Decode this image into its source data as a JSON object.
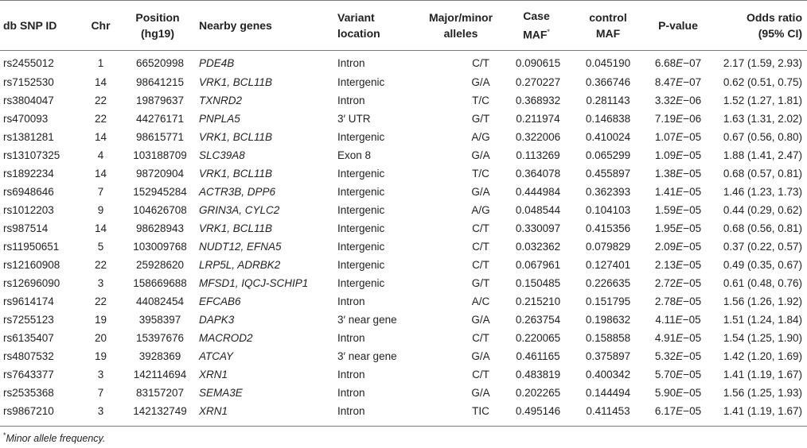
{
  "columns": [
    {
      "key": "snp",
      "label_line1": "db SNP ID",
      "label_line2": ""
    },
    {
      "key": "chr",
      "label_line1": "Chr",
      "label_line2": ""
    },
    {
      "key": "position",
      "label_line1": "Position",
      "label_line2": "(hg19)"
    },
    {
      "key": "genes",
      "label_line1": "Nearby genes",
      "label_line2": ""
    },
    {
      "key": "location",
      "label_line1": "Variant",
      "label_line2": "location"
    },
    {
      "key": "alleles",
      "label_line1": "Major/minor",
      "label_line2": "alleles"
    },
    {
      "key": "case_maf",
      "label_line1": "Case",
      "label_line2": "MAF",
      "label_sup": "*"
    },
    {
      "key": "control_maf",
      "label_line1": "control",
      "label_line2": "MAF"
    },
    {
      "key": "pvalue",
      "label_line1": "P-value",
      "label_line2": ""
    },
    {
      "key": "or",
      "label_line1": "Odds ratio",
      "label_line2": "(95% CI)"
    }
  ],
  "rows": [
    {
      "snp": "rs2455012",
      "chr": "1",
      "position": "66520998",
      "genes": "PDE4B",
      "location": "Intron",
      "alleles": "C/T",
      "case_maf": "0.090615",
      "control_maf": "0.045190",
      "p_mant": "6.68",
      "p_exp": "−07",
      "or": "2.17 (1.59, 2.93)"
    },
    {
      "snp": "rs7152530",
      "chr": "14",
      "position": "98641215",
      "genes": "VRK1, BCL11B",
      "location": "Intergenic",
      "alleles": "G/A",
      "case_maf": "0.270227",
      "control_maf": "0.366746",
      "p_mant": "8.47",
      "p_exp": "−07",
      "or": "0.62 (0.51, 0.75)"
    },
    {
      "snp": "rs3804047",
      "chr": "22",
      "position": "19879637",
      "genes": "TXNRD2",
      "location": "Intron",
      "alleles": "T/C",
      "case_maf": "0.368932",
      "control_maf": "0.281143",
      "p_mant": "3.32",
      "p_exp": "−06",
      "or": "1.52 (1.27, 1.81)"
    },
    {
      "snp": "rs470093",
      "chr": "22",
      "position": "44276171",
      "genes": "PNPLA5",
      "location": "3′ UTR",
      "alleles": "G/T",
      "case_maf": "0.211974",
      "control_maf": "0.146838",
      "p_mant": "7.19",
      "p_exp": "−06",
      "or": "1.63 (1.31, 2.02)"
    },
    {
      "snp": "rs1381281",
      "chr": "14",
      "position": "98615771",
      "genes": "VRK1, BCL11B",
      "location": "Intergenic",
      "alleles": "A/G",
      "case_maf": "0.322006",
      "control_maf": "0.410024",
      "p_mant": "1.07",
      "p_exp": "−05",
      "or": "0.67 (0.56, 0.80)"
    },
    {
      "snp": "rs13107325",
      "chr": "4",
      "position": "103188709",
      "genes": "SLC39A8",
      "location": "Exon 8",
      "alleles": "G/A",
      "case_maf": "0.113269",
      "control_maf": "0.065299",
      "p_mant": "1.09",
      "p_exp": "−05",
      "or": "1.88 (1.41, 2.47)"
    },
    {
      "snp": "rs1892234",
      "chr": "14",
      "position": "98720904",
      "genes": "VRK1, BCL11B",
      "location": "Intergenic",
      "alleles": "T/C",
      "case_maf": "0.364078",
      "control_maf": "0.455897",
      "p_mant": "1.38",
      "p_exp": "−05",
      "or": "0.68 (0.57, 0.81)"
    },
    {
      "snp": "rs6948646",
      "chr": "7",
      "position": "152945284",
      "genes": "ACTR3B, DPP6",
      "location": "Intergenic",
      "alleles": "G/A",
      "case_maf": "0.444984",
      "control_maf": "0.362393",
      "p_mant": "1.41",
      "p_exp": "−05",
      "or": "1.46 (1.23, 1.73)"
    },
    {
      "snp": "rs1012203",
      "chr": "9",
      "position": "104626708",
      "genes": "GRIN3A, CYLC2",
      "location": "Intergenic",
      "alleles": "A/G",
      "case_maf": "0.048544",
      "control_maf": "0.104103",
      "p_mant": "1.59",
      "p_exp": "−05",
      "or": "0.44 (0.29, 0.62)"
    },
    {
      "snp": "rs987514",
      "chr": "14",
      "position": "98628943",
      "genes": "VRK1, BCL11B",
      "location": "Intergenic",
      "alleles": "C/T",
      "case_maf": "0.330097",
      "control_maf": "0.415356",
      "p_mant": "1.95",
      "p_exp": "−05",
      "or": "0.68 (0.56, 0.81)"
    },
    {
      "snp": "rs11950651",
      "chr": "5",
      "position": "103009768",
      "genes": "NUDT12, EFNA5",
      "location": "Intergenic",
      "alleles": "C/T",
      "case_maf": "0.032362",
      "control_maf": "0.079829",
      "p_mant": "2.09",
      "p_exp": "−05",
      "or": "0.37 (0.22, 0.57)"
    },
    {
      "snp": "rs12160908",
      "chr": "22",
      "position": "25928620",
      "genes": "LRP5L, ADRBK2",
      "location": "Intergenic",
      "alleles": "C/T",
      "case_maf": "0.067961",
      "control_maf": "0.127401",
      "p_mant": "2.13",
      "p_exp": "−05",
      "or": "0.49 (0.35, 0.67)"
    },
    {
      "snp": "rs12696090",
      "chr": "3",
      "position": "158669688",
      "genes": "MFSD1, IQCJ-SCHIP1",
      "location": "Intergenic",
      "alleles": "G/T",
      "case_maf": "0.150485",
      "control_maf": "0.226635",
      "p_mant": "2.72",
      "p_exp": "−05",
      "or": "0.61 (0.48, 0.76)"
    },
    {
      "snp": "rs9614174",
      "chr": "22",
      "position": "44082454",
      "genes": "EFCAB6",
      "location": "Intron",
      "alleles": "A/C",
      "case_maf": "0.215210",
      "control_maf": "0.151795",
      "p_mant": "2.78",
      "p_exp": "−05",
      "or": "1.56 (1.26, 1.92)"
    },
    {
      "snp": "rs7255123",
      "chr": "19",
      "position": "3958397",
      "genes": "DAPK3",
      "location": "3′ near gene",
      "alleles": "G/A",
      "case_maf": "0.263754",
      "control_maf": "0.198632",
      "p_mant": "4.11",
      "p_exp": "−05",
      "or": "1.51 (1.24, 1.84)"
    },
    {
      "snp": "rs6135407",
      "chr": "20",
      "position": "15397676",
      "genes": "MACROD2",
      "location": "Intron",
      "alleles": "C/T",
      "case_maf": "0.220065",
      "control_maf": "0.158858",
      "p_mant": "4.91",
      "p_exp": "−05",
      "or": "1.54 (1.25, 1.90)"
    },
    {
      "snp": "rs4807532",
      "chr": "19",
      "position": "3928369",
      "genes": "ATCAY",
      "location": "3′ near gene",
      "alleles": "G/A",
      "case_maf": "0.461165",
      "control_maf": "0.375897",
      "p_mant": "5.32",
      "p_exp": "−05",
      "or": "1.42 (1.20, 1.69)"
    },
    {
      "snp": "rs7643377",
      "chr": "3",
      "position": "142114694",
      "genes": "XRN1",
      "location": "Intron",
      "alleles": "C/T",
      "case_maf": "0.483819",
      "control_maf": "0.400342",
      "p_mant": "5.70",
      "p_exp": "−05",
      "or": "1.41 (1.19, 1.67)"
    },
    {
      "snp": "rs2535368",
      "chr": "7",
      "position": "83157207",
      "genes": "SEMA3E",
      "location": "Intron",
      "alleles": "G/A",
      "case_maf": "0.202265",
      "control_maf": "0.144494",
      "p_mant": "5.90",
      "p_exp": "−05",
      "or": "1.56 (1.25, 1.93)"
    },
    {
      "snp": "rs9867210",
      "chr": "3",
      "position": "142132749",
      "genes": "XRN1",
      "location": "Intron",
      "alleles": "TIC",
      "case_maf": "0.495146",
      "control_maf": "0.411453",
      "p_mant": "6.17",
      "p_exp": "−05",
      "or": "1.41 (1.19, 1.67)"
    }
  ],
  "p_exp_letter": "E",
  "footnote": {
    "marker": "*",
    "text": "Minor allele frequency."
  }
}
